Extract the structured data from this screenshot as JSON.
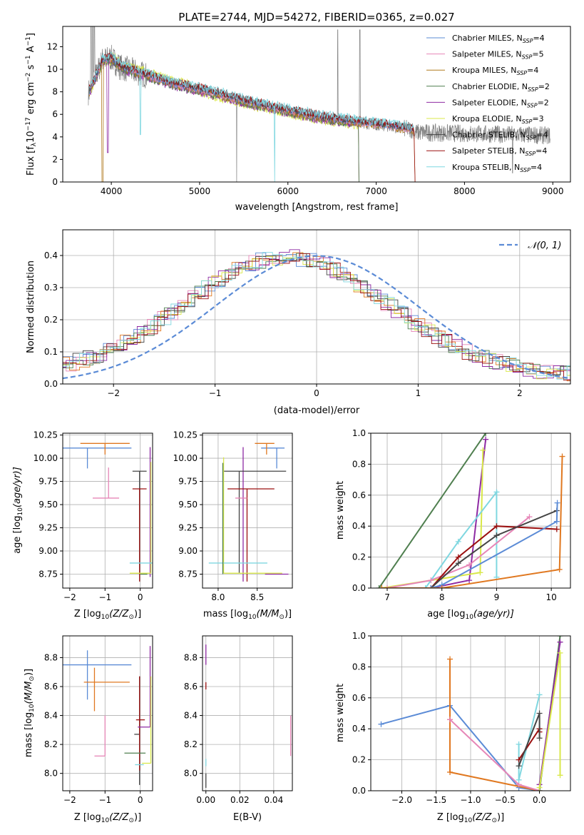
{
  "figure": {
    "title": "PLATE=2744, MJD=54272, FIBERID=0365, z=0.027"
  },
  "colors": {
    "Chabrier MILES": "#5b8bd6",
    "Salpeter MILES": "#e686b7",
    "Kroupa MILES": "#b07a1f",
    "Chabrier ELODIE": "#4f7f4f",
    "Salpeter ELODIE": "#8e2aa3",
    "Kroupa ELODIE": "#d9e84a",
    "Chabrier STELIB": "#444444",
    "Salpeter STELIB": "#9b1010",
    "Kroupa STELIB": "#7fd7e0",
    "data": "#808080",
    "orange": "#e07820",
    "gaussian": "#5b8bd6"
  },
  "chart_data": [
    {
      "id": "spectrum",
      "type": "line",
      "title": "PLATE=2744, MJD=54272, FIBERID=0365, z=0.027",
      "xlabel": "wavelength [Angstrom, rest frame]",
      "ylabel_parts": [
        "Flux [f",
        "λ",
        "10",
        "−17",
        " erg cm",
        "−2",
        " s",
        "−1",
        " A",
        "−1",
        "]"
      ],
      "xlim": [
        3450,
        9200
      ],
      "ylim": [
        0,
        13.8
      ],
      "xticks": [
        4000,
        5000,
        6000,
        7000,
        8000,
        9000
      ],
      "yticks": [
        0,
        2,
        4,
        6,
        8,
        10,
        12
      ],
      "legend_placement": "top-right",
      "legend": [
        {
          "name": "Chabrier MILES",
          "nssp": "4"
        },
        {
          "name": "Salpeter MILES",
          "nssp": "5"
        },
        {
          "name": "Kroupa MILES",
          "nssp": "4"
        },
        {
          "name": "Chabrier ELODIE",
          "nssp": "2"
        },
        {
          "name": "Salpeter ELODIE",
          "nssp": "2"
        },
        {
          "name": "Kroupa ELODIE",
          "nssp": "3"
        },
        {
          "name": "Chabrier STELIB",
          "nssp": "4"
        },
        {
          "name": "Salpeter STELIB",
          "nssp": "4"
        },
        {
          "name": "Kroupa STELIB",
          "nssp": "4"
        }
      ],
      "continuum_x": [
        3750,
        3900,
        4000,
        4100,
        4300,
        4500,
        4700,
        5000,
        5300,
        5600,
        6000,
        6400,
        6800,
        7200,
        7430
      ],
      "continuum_y": [
        8.0,
        10.8,
        11.0,
        10.2,
        9.7,
        9.2,
        8.7,
        8.2,
        7.6,
        7.0,
        6.3,
        5.7,
        5.3,
        4.9,
        4.6
      ]
    },
    {
      "id": "residuals",
      "type": "line",
      "xlabel": "(data-model)/error",
      "ylabel": "Normed distribution",
      "xlim": [
        -2.5,
        2.5
      ],
      "ylim": [
        0,
        0.48
      ],
      "xticks": [
        -2,
        -1,
        0,
        1,
        2
      ],
      "yticks": [
        0.0,
        0.1,
        0.2,
        0.3,
        0.4
      ],
      "legend_placement": "top-right",
      "legend_label": "𝒩(0, 1)"
    },
    {
      "id": "age-vs-Z",
      "type": "scatter",
      "xlabel_parts": [
        "Z [log",
        "10",
        "(Z/Z",
        "⊙",
        ")]"
      ],
      "ylabel_parts": [
        "age  [log",
        "10",
        "(age/yr)]"
      ],
      "xlim": [
        -2.2,
        0.35
      ],
      "ylim": [
        8.6,
        10.27
      ],
      "xticks": [
        -2,
        -1,
        0
      ],
      "yticks": [
        8.75,
        9.0,
        9.25,
        9.5,
        9.75,
        10.0,
        10.25
      ],
      "points": [
        {
          "c": "Chabrier MILES",
          "x": -1.5,
          "y": 10.11,
          "xerr": [
            0.75,
            1.25
          ],
          "yerr": [
            0.22,
            0.0
          ]
        },
        {
          "c": "orange",
          "x": -1.0,
          "y": 10.16,
          "xerr": [
            0.7,
            0.7
          ],
          "yerr": [
            0.12,
            0.0
          ]
        },
        {
          "c": "Salpeter MILES",
          "x": -0.9,
          "y": 9.57,
          "xerr": [
            0.45,
            0.3
          ],
          "yerr": [
            0.0,
            0.33
          ]
        },
        {
          "c": "Chabrier STELIB",
          "x": -0.02,
          "y": 9.86,
          "xerr": [
            0.2,
            0.2
          ],
          "yerr": [
            1.1,
            0.0
          ]
        },
        {
          "c": "Salpeter STELIB",
          "x": -0.02,
          "y": 9.67,
          "xerr": [
            0.2,
            0.2
          ],
          "yerr": [
            1.0,
            0.0
          ]
        },
        {
          "c": "Salpeter ELODIE",
          "x": 0.28,
          "y": 10.12,
          "xerr": [
            0.0,
            0.0
          ],
          "yerr": [
            1.4,
            0.0
          ]
        },
        {
          "c": "Kroupa ELODIE",
          "x": 0.3,
          "y": 8.76,
          "xerr": [
            0.6,
            0.0
          ],
          "yerr": [
            0.0,
            1.2
          ]
        },
        {
          "c": "Kroupa STELIB",
          "x": 0.0,
          "y": 8.87,
          "xerr": [
            0.3,
            0.35
          ],
          "yerr": [
            0.0,
            0.0
          ]
        },
        {
          "c": "Chabrier ELODIE",
          "x": 0.0,
          "y": 8.75,
          "xerr": [
            0.0,
            0.2
          ],
          "yerr": [
            0.0,
            0.0
          ]
        }
      ]
    },
    {
      "id": "age-vs-mass",
      "type": "scatter",
      "xlabel_parts": [
        "mass [log",
        "10",
        "(M/M",
        "⊙",
        ")]"
      ],
      "xlim": [
        7.8,
        8.95
      ],
      "ylim": [
        8.6,
        10.27
      ],
      "xticks": [
        8.0,
        8.5
      ],
      "yticks": [
        8.75,
        9.0,
        9.25,
        9.5,
        9.75,
        10.0,
        10.25
      ],
      "points": [
        {
          "c": "Chabrier MILES",
          "x": 8.75,
          "y": 10.11,
          "xerr": [
            0.2,
            0.1
          ],
          "yerr": [
            0.22,
            0.0
          ]
        },
        {
          "c": "orange",
          "x": 8.62,
          "y": 10.16,
          "xerr": [
            0.15,
            0.1
          ],
          "yerr": [
            0.12,
            0.0
          ]
        },
        {
          "c": "Salpeter ELODIE",
          "x": 8.32,
          "y": 9.67,
          "xerr": [
            0.0,
            0.0
          ],
          "yerr": [
            1.0,
            0.45
          ]
        },
        {
          "c": "Chabrier STELIB",
          "x": 8.27,
          "y": 9.86,
          "xerr": [
            0.2,
            0.6
          ],
          "yerr": [
            1.1,
            0.0
          ]
        },
        {
          "c": "Salpeter STELIB",
          "x": 8.37,
          "y": 9.67,
          "xerr": [
            0.25,
            0.35
          ],
          "yerr": [
            1.0,
            0.0
          ]
        },
        {
          "c": "Salpeter MILES",
          "x": 8.37,
          "y": 9.57,
          "xerr": [
            0.15,
            0.0
          ],
          "yerr": [
            0.0,
            0.0
          ]
        },
        {
          "c": "Kroupa ELODIE",
          "x": 8.07,
          "y": 8.76,
          "xerr": [
            0.0,
            0.75
          ],
          "yerr": [
            0.0,
            1.25
          ]
        },
        {
          "c": "Kroupa STELIB",
          "x": 8.08,
          "y": 8.87,
          "xerr": [
            0.2,
            0.55
          ],
          "yerr": [
            0.0,
            0.0
          ]
        },
        {
          "c": "Chabrier ELODIE",
          "x": 8.06,
          "y": 8.75,
          "xerr": [
            0.0,
            0.0
          ],
          "yerr": [
            0.0,
            1.2
          ]
        },
        {
          "c": "Salpeter ELODIE",
          "x": 8.9,
          "y": 8.75,
          "xerr": [
            0.3,
            0.0
          ],
          "yerr": [
            0.0,
            0.0
          ]
        }
      ]
    },
    {
      "id": "weight-vs-age",
      "type": "line",
      "xlabel_parts": [
        "age  [log",
        "10",
        "(age/yr)]"
      ],
      "ylabel": "mass weight",
      "xlim": [
        6.7,
        10.35
      ],
      "ylim": [
        0,
        1.0
      ],
      "xticks": [
        7,
        8,
        9,
        10
      ],
      "yticks": [
        0.0,
        0.2,
        0.4,
        0.6,
        0.8,
        1.0
      ],
      "series": [
        {
          "c": "Chabrier ELODIE",
          "x": [
            6.85,
            8.8
          ],
          "y": [
            0.0,
            1.0
          ]
        },
        {
          "c": "Salpeter ELODIE",
          "x": [
            7.8,
            8.5,
            8.8
          ],
          "y": [
            0.0,
            0.05,
            0.96
          ]
        },
        {
          "c": "Kroupa ELODIE",
          "x": [
            6.9,
            8.7,
            8.75
          ],
          "y": [
            0.0,
            0.1,
            0.89
          ]
        },
        {
          "c": "Kroupa STELIB",
          "x": [
            7.7,
            8.3,
            9.0,
            9.0
          ],
          "y": [
            0.0,
            0.3,
            0.62,
            0.07
          ]
        },
        {
          "c": "Salpeter MILES",
          "x": [
            7.0,
            7.8,
            8.5,
            9.6
          ],
          "y": [
            0.0,
            0.05,
            0.15,
            0.46
          ]
        },
        {
          "c": "Salpeter STELIB",
          "x": [
            7.8,
            8.3,
            9.0,
            10.1
          ],
          "y": [
            0.0,
            0.2,
            0.4,
            0.38
          ]
        },
        {
          "c": "Chabrier STELIB",
          "x": [
            7.8,
            8.3,
            9.0,
            10.1
          ],
          "y": [
            0.0,
            0.16,
            0.34,
            0.5
          ]
        },
        {
          "c": "Chabrier MILES",
          "x": [
            7.8,
            8.0,
            10.1,
            10.11
          ],
          "y": [
            0.0,
            0.02,
            0.43,
            0.55
          ]
        },
        {
          "c": "orange",
          "x": [
            6.9,
            8.0,
            10.15,
            10.2
          ],
          "y": [
            0.0,
            0.0,
            0.12,
            0.85
          ]
        }
      ]
    },
    {
      "id": "mass-vs-Z",
      "type": "scatter",
      "xlabel_parts": [
        "Z [log",
        "10",
        "(Z/Z",
        "⊙",
        ")]"
      ],
      "ylabel_parts": [
        "mass [log",
        "10",
        "(M/M",
        "⊙",
        ")]"
      ],
      "xlim": [
        -2.2,
        0.35
      ],
      "ylim": [
        7.88,
        8.95
      ],
      "xticks": [
        -2,
        -1,
        0
      ],
      "yticks": [
        8.0,
        8.2,
        8.4,
        8.6,
        8.8
      ],
      "points": [
        {
          "c": "Chabrier MILES",
          "x": -1.5,
          "y": 8.75,
          "xerr": [
            0.75,
            1.25
          ],
          "yerr": [
            0.24,
            0.1
          ]
        },
        {
          "c": "orange",
          "x": -1.3,
          "y": 8.63,
          "xerr": [
            0.3,
            1.0
          ],
          "yerr": [
            0.2,
            0.1
          ]
        },
        {
          "c": "Salpeter MILES",
          "x": -1.0,
          "y": 8.12,
          "xerr": [
            0.3,
            0.0
          ],
          "yerr": [
            0.0,
            0.28
          ]
        },
        {
          "c": "Chabrier STELIB",
          "x": -0.02,
          "y": 8.27,
          "xerr": [
            0.15,
            0.0
          ],
          "yerr": [
            0.35,
            0.4
          ]
        },
        {
          "c": "Salpeter STELIB",
          "x": -0.02,
          "y": 8.37,
          "xerr": [
            0.1,
            0.15
          ],
          "yerr": [
            0.35,
            0.3
          ]
        },
        {
          "c": "Salpeter ELODIE",
          "x": 0.28,
          "y": 8.32,
          "xerr": [
            0.35,
            0.0
          ],
          "yerr": [
            0.0,
            0.56
          ]
        },
        {
          "c": "Kroupa ELODIE",
          "x": 0.3,
          "y": 8.07,
          "xerr": [
            0.25,
            0.0
          ],
          "yerr": [
            0.0,
            0.6
          ]
        },
        {
          "c": "Kroupa STELIB",
          "x": 0.0,
          "y": 8.06,
          "xerr": [
            0.15,
            0.1
          ],
          "yerr": [
            0.0,
            0.0
          ]
        },
        {
          "c": "Chabrier ELODIE",
          "x": 0.15,
          "y": 8.14,
          "xerr": [
            0.6,
            0.0
          ],
          "yerr": [
            0.0,
            0.0
          ]
        }
      ]
    },
    {
      "id": "mass-vs-EBV",
      "type": "scatter",
      "xlabel": "E(B-V)",
      "xlim": [
        -0.002,
        0.051
      ],
      "ylim": [
        7.88,
        8.95
      ],
      "xticks": [
        0.0,
        0.02,
        0.04
      ],
      "yticks": [
        8.0,
        8.2,
        8.4,
        8.6,
        8.8
      ],
      "points": [
        {
          "c": "Salpeter ELODIE",
          "x": 0.0,
          "y": 8.75,
          "xerr": [
            0,
            0
          ],
          "yerr": [
            0.0,
            0.14
          ]
        },
        {
          "c": "Salpeter STELIB",
          "x": 0.0,
          "y": 8.63,
          "xerr": [
            0,
            0
          ],
          "yerr": [
            0.05,
            0.0
          ]
        },
        {
          "c": "Chabrier STELIB",
          "x": 0.0,
          "y": 8.0,
          "xerr": [
            0,
            0
          ],
          "yerr": [
            0.1,
            0.0
          ]
        },
        {
          "c": "Kroupa STELIB",
          "x": 0.0,
          "y": 8.1,
          "xerr": [
            0,
            0
          ],
          "yerr": [
            0.05,
            0.0
          ]
        },
        {
          "c": "Salpeter MILES",
          "x": 0.05,
          "y": 8.26,
          "xerr": [
            0,
            0
          ],
          "yerr": [
            0.14,
            0.14
          ]
        }
      ]
    },
    {
      "id": "weight-vs-Z",
      "type": "line",
      "xlabel_parts": [
        "Z [log",
        "10",
        "(Z/Z",
        "⊙",
        ")]"
      ],
      "ylabel": "mass weight",
      "xlim": [
        -2.45,
        0.45
      ],
      "ylim": [
        0,
        1.0
      ],
      "xticks": [
        -2.0,
        -1.5,
        -1.0,
        -0.5,
        0.0
      ],
      "yticks": [
        0.0,
        0.2,
        0.4,
        0.6,
        0.8,
        1.0
      ],
      "series": [
        {
          "c": "Chabrier MILES",
          "x": [
            -2.3,
            -1.3,
            -0.3,
            0.0
          ],
          "y": [
            0.43,
            0.55,
            0.02,
            0.0
          ]
        },
        {
          "c": "orange",
          "x": [
            -1.3,
            -1.3,
            -1.3,
            0.0
          ],
          "y": [
            0.85,
            0.46,
            0.12,
            0.0
          ]
        },
        {
          "c": "Salpeter MILES",
          "x": [
            -1.3,
            -0.3,
            0.0
          ],
          "y": [
            0.46,
            0.04,
            0.0
          ]
        },
        {
          "c": "Chabrier ELODIE",
          "x": [
            0.0,
            0.3
          ],
          "y": [
            0.0,
            1.0
          ]
        },
        {
          "c": "Salpeter ELODIE",
          "x": [
            0.0,
            0.3
          ],
          "y": [
            0.04,
            0.96
          ]
        },
        {
          "c": "Kroupa ELODIE",
          "x": [
            0.0,
            0.3,
            0.3
          ],
          "y": [
            0.02,
            0.89,
            0.1
          ]
        },
        {
          "c": "Kroupa STELIB",
          "x": [
            -0.3,
            -0.3,
            0.0
          ],
          "y": [
            0.3,
            0.07,
            0.62
          ]
        },
        {
          "c": "Salpeter STELIB",
          "x": [
            -0.3,
            0.0,
            0.0
          ],
          "y": [
            0.2,
            0.4,
            0.38
          ]
        },
        {
          "c": "Chabrier STELIB",
          "x": [
            -0.3,
            0.0,
            0.0
          ],
          "y": [
            0.16,
            0.5,
            0.34
          ]
        }
      ]
    }
  ]
}
